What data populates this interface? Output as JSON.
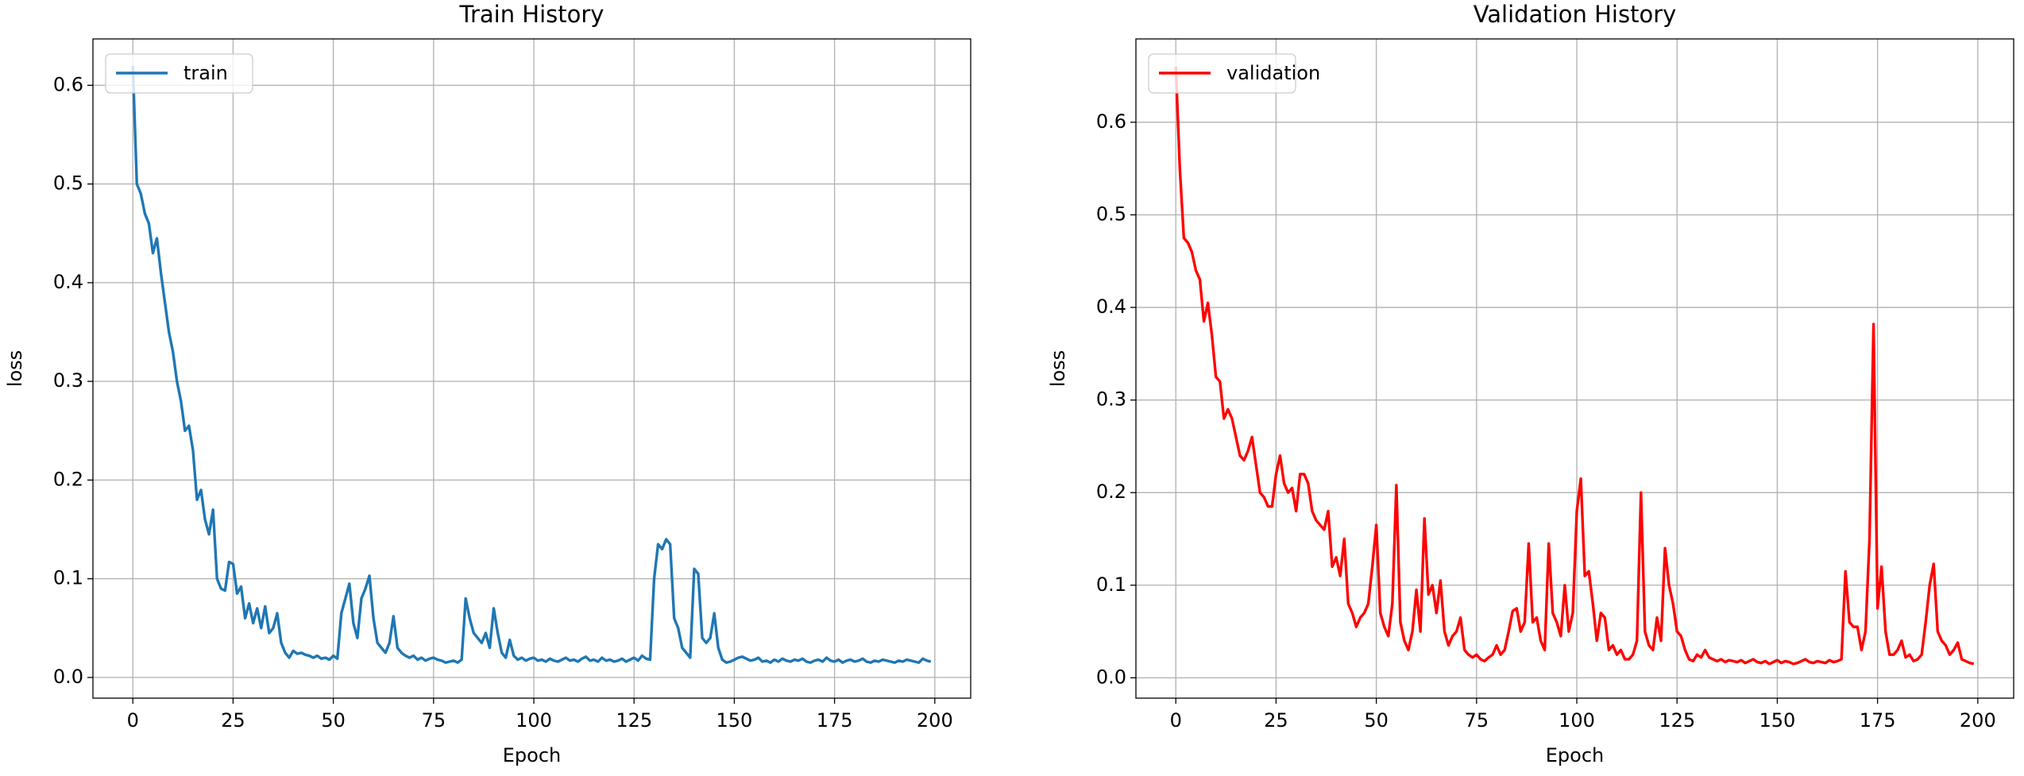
{
  "chart_data": [
    {
      "type": "line",
      "title": "Train History",
      "xlabel": "Epoch",
      "ylabel": "loss",
      "x": [
        0,
        1,
        2,
        3,
        4,
        5,
        6,
        7,
        8,
        9,
        10,
        11,
        12,
        13,
        14,
        15,
        16,
        17,
        18,
        19,
        20,
        21,
        22,
        23,
        24,
        25,
        26,
        27,
        28,
        29,
        30,
        31,
        32,
        33,
        34,
        35,
        36,
        37,
        38,
        39,
        40,
        41,
        42,
        43,
        44,
        45,
        46,
        47,
        48,
        49,
        50,
        51,
        52,
        53,
        54,
        55,
        56,
        57,
        58,
        59,
        60,
        61,
        62,
        63,
        64,
        65,
        66,
        67,
        68,
        69,
        70,
        71,
        72,
        73,
        74,
        75,
        76,
        77,
        78,
        79,
        80,
        81,
        82,
        83,
        84,
        85,
        86,
        87,
        88,
        89,
        90,
        91,
        92,
        93,
        94,
        95,
        96,
        97,
        98,
        99,
        100,
        101,
        102,
        103,
        104,
        105,
        106,
        107,
        108,
        109,
        110,
        111,
        112,
        113,
        114,
        115,
        116,
        117,
        118,
        119,
        120,
        121,
        122,
        123,
        124,
        125,
        126,
        127,
        128,
        129,
        130,
        131,
        132,
        133,
        134,
        135,
        136,
        137,
        138,
        139,
        140,
        141,
        142,
        143,
        144,
        145,
        146,
        147,
        148,
        149,
        150,
        151,
        152,
        153,
        154,
        155,
        156,
        157,
        158,
        159,
        160,
        161,
        162,
        163,
        164,
        165,
        166,
        167,
        168,
        169,
        170,
        171,
        172,
        173,
        174,
        175,
        176,
        177,
        178,
        179,
        180,
        181,
        182,
        183,
        184,
        185,
        186,
        187,
        188,
        189,
        190,
        191,
        192,
        193,
        194,
        195,
        196,
        197,
        198,
        199
      ],
      "series": [
        {
          "name": "train",
          "color": "#1f77b4",
          "values": [
            0.62,
            0.5,
            0.49,
            0.47,
            0.46,
            0.43,
            0.445,
            0.41,
            0.38,
            0.35,
            0.33,
            0.3,
            0.28,
            0.25,
            0.255,
            0.23,
            0.18,
            0.19,
            0.16,
            0.145,
            0.17,
            0.1,
            0.09,
            0.088,
            0.117,
            0.115,
            0.085,
            0.092,
            0.06,
            0.075,
            0.055,
            0.07,
            0.05,
            0.072,
            0.045,
            0.05,
            0.065,
            0.035,
            0.025,
            0.02,
            0.027,
            0.024,
            0.025,
            0.023,
            0.022,
            0.02,
            0.022,
            0.019,
            0.02,
            0.018,
            0.022,
            0.019,
            0.065,
            0.08,
            0.095,
            0.055,
            0.04,
            0.08,
            0.09,
            0.103,
            0.06,
            0.035,
            0.03,
            0.025,
            0.035,
            0.062,
            0.03,
            0.025,
            0.022,
            0.02,
            0.022,
            0.018,
            0.02,
            0.017,
            0.019,
            0.02,
            0.018,
            0.017,
            0.015,
            0.016,
            0.017,
            0.015,
            0.018,
            0.08,
            0.06,
            0.045,
            0.04,
            0.035,
            0.045,
            0.03,
            0.07,
            0.045,
            0.025,
            0.02,
            0.038,
            0.022,
            0.018,
            0.02,
            0.017,
            0.019,
            0.02,
            0.017,
            0.018,
            0.016,
            0.019,
            0.017,
            0.016,
            0.018,
            0.02,
            0.017,
            0.018,
            0.016,
            0.019,
            0.021,
            0.017,
            0.018,
            0.016,
            0.02,
            0.017,
            0.018,
            0.016,
            0.017,
            0.019,
            0.016,
            0.018,
            0.02,
            0.017,
            0.022,
            0.019,
            0.018,
            0.1,
            0.135,
            0.13,
            0.14,
            0.135,
            0.06,
            0.05,
            0.03,
            0.025,
            0.02,
            0.11,
            0.105,
            0.04,
            0.035,
            0.04,
            0.065,
            0.03,
            0.018,
            0.015,
            0.016,
            0.018,
            0.02,
            0.021,
            0.019,
            0.017,
            0.018,
            0.02,
            0.016,
            0.017,
            0.015,
            0.018,
            0.016,
            0.019,
            0.017,
            0.016,
            0.018,
            0.017,
            0.019,
            0.016,
            0.015,
            0.017,
            0.018,
            0.016,
            0.02,
            0.017,
            0.016,
            0.018,
            0.015,
            0.017,
            0.018,
            0.016,
            0.017,
            0.019,
            0.016,
            0.015,
            0.017,
            0.016,
            0.018,
            0.017,
            0.016,
            0.015,
            0.017,
            0.016,
            0.018,
            0.017,
            0.016,
            0.015,
            0.019,
            0.017,
            0.016
          ]
        }
      ],
      "xlim": [
        -9.95,
        208.95
      ],
      "ylim": [
        -0.021,
        0.647
      ],
      "xticks": [
        0,
        25,
        50,
        75,
        100,
        125,
        150,
        175,
        200
      ],
      "yticks": [
        {
          "value": 0,
          "label": "0.0"
        },
        0.1,
        0.2,
        0.3,
        0.4,
        0.5,
        0.6
      ],
      "grid": true,
      "legend": "upper left"
    },
    {
      "type": "line",
      "title": "Validation History",
      "xlabel": "Epoch",
      "ylabel": "loss",
      "x": [
        0,
        1,
        2,
        3,
        4,
        5,
        6,
        7,
        8,
        9,
        10,
        11,
        12,
        13,
        14,
        15,
        16,
        17,
        18,
        19,
        20,
        21,
        22,
        23,
        24,
        25,
        26,
        27,
        28,
        29,
        30,
        31,
        32,
        33,
        34,
        35,
        36,
        37,
        38,
        39,
        40,
        41,
        42,
        43,
        44,
        45,
        46,
        47,
        48,
        49,
        50,
        51,
        52,
        53,
        54,
        55,
        56,
        57,
        58,
        59,
        60,
        61,
        62,
        63,
        64,
        65,
        66,
        67,
        68,
        69,
        70,
        71,
        72,
        73,
        74,
        75,
        76,
        77,
        78,
        79,
        80,
        81,
        82,
        83,
        84,
        85,
        86,
        87,
        88,
        89,
        90,
        91,
        92,
        93,
        94,
        95,
        96,
        97,
        98,
        99,
        100,
        101,
        102,
        103,
        104,
        105,
        106,
        107,
        108,
        109,
        110,
        111,
        112,
        113,
        114,
        115,
        116,
        117,
        118,
        119,
        120,
        121,
        122,
        123,
        124,
        125,
        126,
        127,
        128,
        129,
        130,
        131,
        132,
        133,
        134,
        135,
        136,
        137,
        138,
        139,
        140,
        141,
        142,
        143,
        144,
        145,
        146,
        147,
        148,
        149,
        150,
        151,
        152,
        153,
        154,
        155,
        156,
        157,
        158,
        159,
        160,
        161,
        162,
        163,
        164,
        165,
        166,
        167,
        168,
        169,
        170,
        171,
        172,
        173,
        174,
        175,
        176,
        177,
        178,
        179,
        180,
        181,
        182,
        183,
        184,
        185,
        186,
        187,
        188,
        189,
        190,
        191,
        192,
        193,
        194,
        195,
        196,
        197,
        198,
        199
      ],
      "series": [
        {
          "name": "validation",
          "color": "#ff0000",
          "values": [
            0.66,
            0.55,
            0.475,
            0.47,
            0.46,
            0.44,
            0.43,
            0.385,
            0.405,
            0.37,
            0.325,
            0.32,
            0.28,
            0.29,
            0.28,
            0.26,
            0.24,
            0.235,
            0.245,
            0.26,
            0.23,
            0.2,
            0.195,
            0.185,
            0.185,
            0.22,
            0.24,
            0.21,
            0.2,
            0.205,
            0.18,
            0.22,
            0.22,
            0.21,
            0.18,
            0.17,
            0.165,
            0.16,
            0.18,
            0.12,
            0.13,
            0.11,
            0.15,
            0.08,
            0.07,
            0.055,
            0.065,
            0.07,
            0.08,
            0.12,
            0.165,
            0.07,
            0.055,
            0.045,
            0.08,
            0.208,
            0.06,
            0.04,
            0.03,
            0.05,
            0.095,
            0.05,
            0.172,
            0.09,
            0.1,
            0.07,
            0.105,
            0.05,
            0.035,
            0.045,
            0.05,
            0.065,
            0.03,
            0.025,
            0.022,
            0.025,
            0.02,
            0.018,
            0.022,
            0.025,
            0.035,
            0.025,
            0.03,
            0.05,
            0.072,
            0.075,
            0.05,
            0.06,
            0.145,
            0.06,
            0.065,
            0.04,
            0.03,
            0.145,
            0.07,
            0.06,
            0.045,
            0.1,
            0.05,
            0.07,
            0.18,
            0.215,
            0.11,
            0.115,
            0.08,
            0.04,
            0.07,
            0.065,
            0.03,
            0.035,
            0.025,
            0.03,
            0.02,
            0.02,
            0.025,
            0.04,
            0.2,
            0.05,
            0.035,
            0.03,
            0.065,
            0.04,
            0.14,
            0.1,
            0.08,
            0.05,
            0.045,
            0.03,
            0.02,
            0.018,
            0.025,
            0.022,
            0.03,
            0.022,
            0.02,
            0.018,
            0.02,
            0.017,
            0.019,
            0.018,
            0.017,
            0.019,
            0.016,
            0.018,
            0.02,
            0.017,
            0.016,
            0.018,
            0.015,
            0.017,
            0.019,
            0.016,
            0.018,
            0.017,
            0.015,
            0.016,
            0.018,
            0.02,
            0.017,
            0.016,
            0.018,
            0.017,
            0.016,
            0.019,
            0.017,
            0.018,
            0.02,
            0.115,
            0.06,
            0.055,
            0.055,
            0.03,
            0.05,
            0.15,
            0.382,
            0.075,
            0.12,
            0.05,
            0.025,
            0.025,
            0.03,
            0.04,
            0.022,
            0.025,
            0.018,
            0.02,
            0.025,
            0.06,
            0.1,
            0.123,
            0.05,
            0.04,
            0.035,
            0.025,
            0.03,
            0.038,
            0.02,
            0.018,
            0.016,
            0.015
          ]
        }
      ],
      "xlim": [
        -9.95,
        208.95
      ],
      "ylim": [
        -0.022,
        0.69
      ],
      "xticks": [
        0,
        25,
        50,
        75,
        100,
        125,
        150,
        175,
        200
      ],
      "yticks": [
        {
          "value": 0,
          "label": "0.0"
        },
        0.1,
        0.2,
        0.3,
        0.4,
        0.5,
        0.6
      ],
      "grid": true,
      "legend": "upper left"
    }
  ]
}
